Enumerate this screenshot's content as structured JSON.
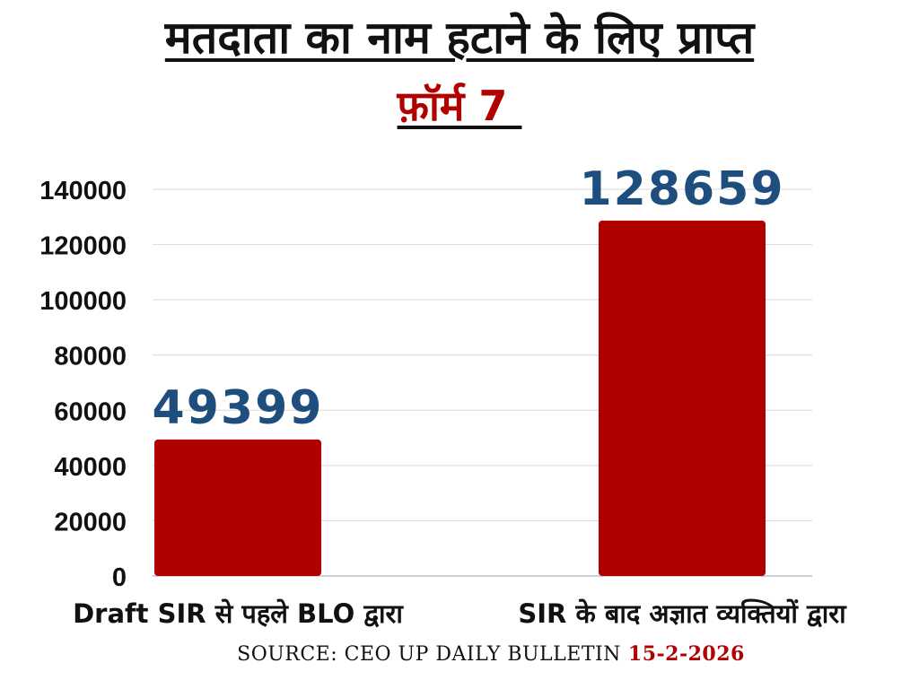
{
  "header": {
    "title": "मतदाता का नाम हटाने के लिए प्राप्त",
    "subtitle": "फ़ॉर्म 7 "
  },
  "footer": {
    "source": "SOURCE: CEO UP DAILY BULLETIN",
    "date": "15-2-2026"
  },
  "colors": {
    "bar": "#b00000",
    "value_label": "#1d4e7e",
    "grid": "#d9d9d9"
  },
  "chart_data": {
    "type": "bar",
    "title": "मतदाता का नाम हटाने के लिए प्राप्त",
    "subtitle": "फ़ॉर्म 7",
    "categories": [
      "Draft SIR से पहले BLO द्वारा",
      "SIR के बाद अज्ञात व्यक्तियों द्वारा"
    ],
    "values": [
      49399,
      128659
    ],
    "data_labels": [
      "49399",
      "128659"
    ],
    "xlabel": "",
    "ylabel": "",
    "ylim": [
      0,
      140000
    ],
    "yticks": [
      0,
      20000,
      40000,
      60000,
      80000,
      100000,
      120000,
      140000
    ],
    "ytick_labels": [
      "0",
      "20000",
      "40000",
      "60000",
      "80000",
      "100000",
      "120000",
      "140000"
    ],
    "grid": true,
    "legend": "none"
  }
}
